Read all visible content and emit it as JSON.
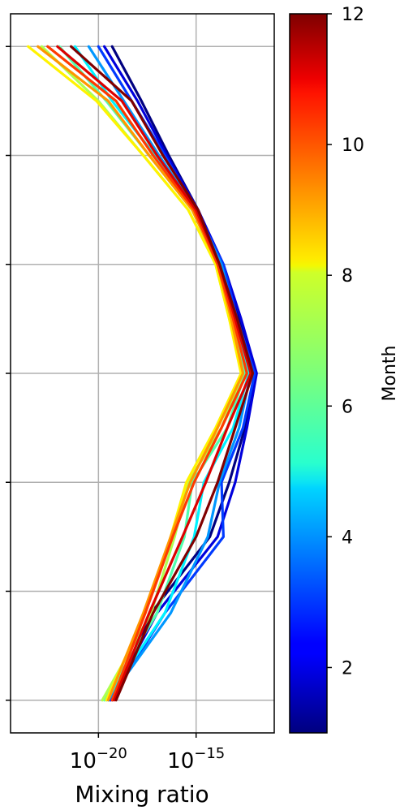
{
  "chart_data": {
    "type": "line",
    "xlabel": "Mixing ratio",
    "x_scale": "log",
    "xlim_exponent": [
      -24.5,
      -11.0
    ],
    "x_tick_base": "10",
    "x_ticks": [
      {
        "exponent": -20,
        "label": "−20"
      },
      {
        "exponent": -15,
        "label": "−15"
      }
    ],
    "ylabel": "",
    "y_levels": [
      0,
      1,
      2,
      3,
      4,
      5,
      6
    ],
    "ylim": [
      -0.3,
      6.3
    ],
    "grid": true,
    "colorbar": {
      "label": "Month",
      "min": 1,
      "max": 12,
      "ticks": [
        2,
        4,
        6,
        8,
        10,
        12
      ],
      "colormap": "jet"
    },
    "series_note_y_levels": [
      0.0,
      0.8,
      1.5,
      2.0,
      2.5,
      3.0,
      3.5,
      4.0,
      4.5,
      5.0,
      5.5,
      6.0
    ],
    "series": [
      {
        "month": 1,
        "x": [
          -19.3,
          -17.3,
          -14.3,
          -13.3,
          -12.5,
          -12.0,
          -12.8,
          -13.7,
          -14.9,
          -16.4,
          -17.8,
          -19.3
        ]
      },
      {
        "month": 2,
        "x": [
          -19.4,
          -17.0,
          -13.9,
          -13.0,
          -12.4,
          -11.9,
          -12.7,
          -13.6,
          -14.9,
          -16.5,
          -18.0,
          -19.7
        ]
      },
      {
        "month": 3,
        "x": [
          -19.4,
          -16.6,
          -13.6,
          -13.7,
          -12.6,
          -12.0,
          -12.9,
          -13.6,
          -15.0,
          -16.6,
          -18.3,
          -20.0
        ]
      },
      {
        "month": 4,
        "x": [
          -19.5,
          -16.3,
          -14.4,
          -13.8,
          -12.8,
          -12.2,
          -13.0,
          -13.7,
          -15.0,
          -16.9,
          -18.7,
          -20.5
        ]
      },
      {
        "month": 5,
        "x": [
          -19.6,
          -16.6,
          -15.1,
          -14.6,
          -13.1,
          -12.3,
          -13.1,
          -13.8,
          -15.1,
          -17.1,
          -19.3,
          -21.2
        ]
      },
      {
        "month": 6,
        "x": [
          -19.7,
          -17.0,
          -15.6,
          -15.2,
          -13.4,
          -12.5,
          -13.2,
          -13.9,
          -15.2,
          -17.4,
          -19.6,
          -22.0
        ]
      },
      {
        "month": 7,
        "x": [
          -19.8,
          -17.3,
          -16.1,
          -15.4,
          -13.7,
          -12.6,
          -13.3,
          -14.0,
          -15.4,
          -17.7,
          -20.0,
          -22.9
        ]
      },
      {
        "month": 8,
        "x": [
          -19.6,
          -17.6,
          -16.3,
          -15.5,
          -14.0,
          -12.7,
          -13.3,
          -14.0,
          -15.4,
          -17.7,
          -20.1,
          -23.6
        ]
      },
      {
        "month": 9,
        "x": [
          -19.5,
          -17.7,
          -16.3,
          -15.3,
          -13.9,
          -12.6,
          -13.2,
          -13.9,
          -15.2,
          -17.4,
          -19.5,
          -23.1
        ]
      },
      {
        "month": 10,
        "x": [
          -19.3,
          -17.6,
          -16.2,
          -15.1,
          -13.7,
          -12.4,
          -13.1,
          -13.9,
          -15.1,
          -17.2,
          -19.1,
          -22.6
        ]
      },
      {
        "month": 11,
        "x": [
          -19.2,
          -17.4,
          -15.7,
          -14.5,
          -13.4,
          -12.2,
          -13.0,
          -13.8,
          -15.0,
          -17.0,
          -18.8,
          -22.1
        ]
      },
      {
        "month": 12,
        "x": [
          -19.1,
          -17.2,
          -15.0,
          -13.9,
          -13.0,
          -12.1,
          -12.9,
          -13.8,
          -14.9,
          -16.7,
          -18.3,
          -21.4
        ]
      }
    ]
  }
}
